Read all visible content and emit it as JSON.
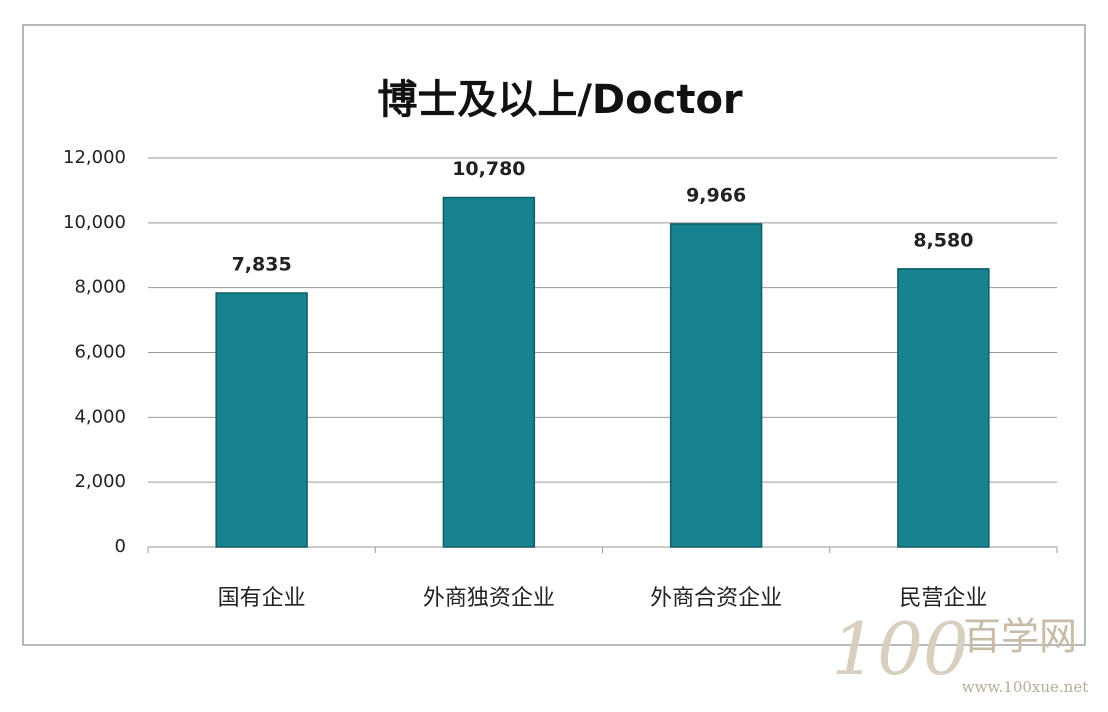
{
  "chart_data": {
    "type": "bar",
    "title": "博士及以上/Doctor",
    "categories": [
      "国有企业",
      "外商独资企业",
      "外商合资企业",
      "民营企业"
    ],
    "values": [
      7835,
      10780,
      9966,
      8580
    ],
    "value_labels": [
      "7,835",
      "10,780",
      "9,966",
      "8,580"
    ],
    "color": "#17838f",
    "ylim": [
      0,
      12000
    ],
    "yticks": [
      0,
      {
        "value": 2000,
        "label": "2,000"
      },
      {
        "value": 4000,
        "label": "4,000"
      },
      {
        "value": 6000,
        "label": "6,000"
      },
      {
        "value": 8000,
        "label": "8,000"
      },
      {
        "value": 10000,
        "label": "10,000"
      },
      {
        "value": 12000,
        "label": "12,000"
      }
    ],
    "grid": true
  },
  "watermark": {
    "logo": "100",
    "name": "百学网",
    "url": "www.100xue.net"
  }
}
